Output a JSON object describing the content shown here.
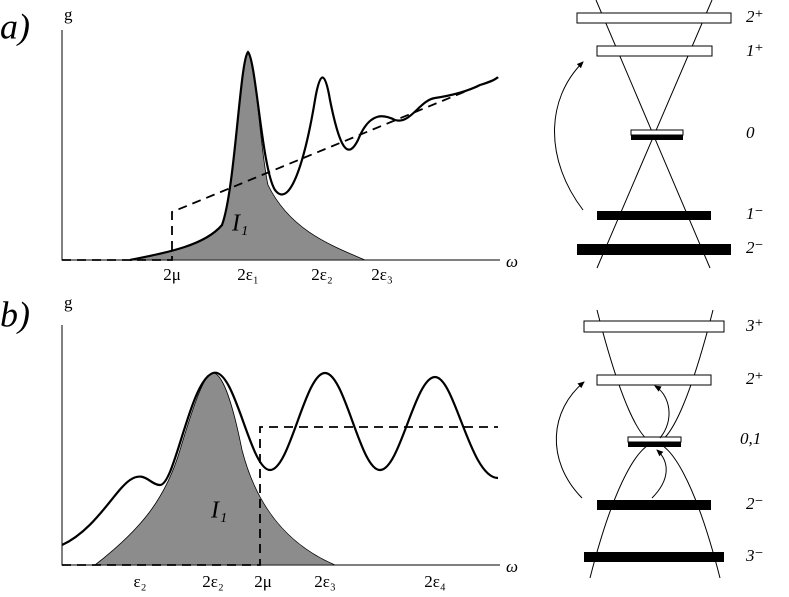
{
  "panels": [
    {
      "label": "a)",
      "y_axis": "g",
      "x_axis": "ω",
      "x_ticks": [
        "2μ",
        "2ε₁",
        "2ε₂",
        "2ε₃"
      ],
      "area_label": "I₁",
      "levels": [
        "2⁺",
        "1⁺",
        "0",
        "1⁻",
        "2⁻"
      ]
    },
    {
      "label": "b)",
      "y_axis": "g",
      "x_axis": "ω",
      "x_ticks": [
        "ε₂",
        "2ε₂",
        "2μ",
        "2ε₃",
        "2ε₄"
      ],
      "area_label": "I₁",
      "levels": [
        "3⁺",
        "2⁺",
        "0,1",
        "2⁻",
        "3⁻"
      ]
    }
  ]
}
